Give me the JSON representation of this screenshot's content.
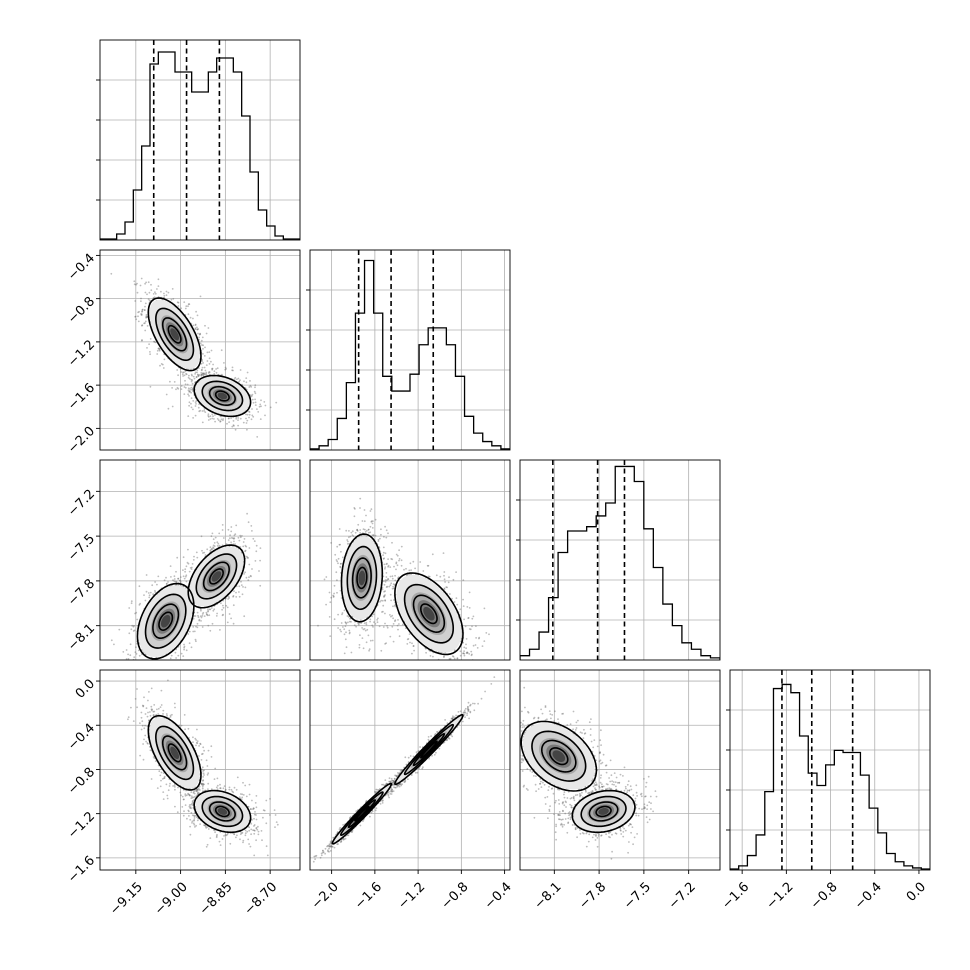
{
  "chart_data": {
    "type": "corner",
    "parameters": [
      {
        "id": "p0",
        "range": [
          -9.27,
          -8.6
        ],
        "ticks": [
          -9.15,
          -9.0,
          -8.85,
          -8.7
        ],
        "tick_labels": [
          "−9.15",
          "−9.00",
          "−8.85",
          "−8.70"
        ],
        "quantiles": [
          -9.09,
          -8.98,
          -8.87
        ],
        "hist_bins": [
          0.5,
          0.5,
          3,
          9,
          25,
          47,
          88,
          94,
          94,
          84,
          84,
          74,
          74,
          84,
          91,
          91,
          84,
          62,
          34,
          15,
          7,
          2,
          0.5,
          0.5
        ],
        "hist_max": 100
      },
      {
        "id": "p1",
        "range": [
          -2.2,
          -0.35
        ],
        "ticks": [
          -2.0,
          -1.6,
          -1.2,
          -0.8,
          -0.4
        ],
        "tick_labels": [
          "−2.0",
          "−1.6",
          "−1.2",
          "−0.8",
          "−0.4"
        ],
        "quantiles": [
          -1.75,
          -1.45,
          -1.06
        ],
        "hist_bins": [
          0.5,
          2,
          5,
          15,
          32,
          65,
          90,
          65,
          35,
          28,
          28,
          36,
          50,
          58,
          58,
          50,
          35,
          16,
          8,
          4,
          2,
          0.5
        ],
        "hist_max": 95
      },
      {
        "id": "p2",
        "range": [
          -8.33,
          -6.99
        ],
        "ticks": [
          -8.1,
          -7.8,
          -7.5,
          -7.2
        ],
        "tick_labels": [
          "−8.1",
          "−7.8",
          "−7.5",
          "−7.2"
        ],
        "quantiles": [
          -8.11,
          -7.81,
          -7.63
        ],
        "hist_bins": [
          2,
          5,
          13,
          29,
          50,
          60,
          60,
          62,
          67,
          73,
          90,
          90,
          83,
          61,
          43,
          26,
          16,
          8,
          5,
          2,
          1
        ],
        "hist_max": 93
      },
      {
        "id": "p3",
        "range": [
          -1.71,
          0.1
        ],
        "ticks": [
          -1.6,
          -1.2,
          -0.8,
          -0.4,
          0.0
        ],
        "tick_labels": [
          "−1.6",
          "−1.2",
          "−0.8",
          "−0.4",
          "0.0"
        ],
        "quantiles": [
          -1.24,
          -0.97,
          -0.6
        ],
        "hist_bins": [
          0.5,
          2,
          7,
          17,
          38,
          88,
          90,
          86,
          65,
          47,
          41,
          51,
          58,
          57,
          57,
          46,
          30,
          18,
          8,
          4,
          2,
          1,
          0.5
        ],
        "hist_max": 97
      }
    ],
    "y_axis_panels": [
      {
        "row": 1,
        "ticks": [
          -2.0,
          -1.6,
          -1.2,
          -0.8,
          -0.4
        ],
        "tick_labels": [
          "−2.0",
          "−1.6",
          "−1.2",
          "−0.8",
          "−0.4"
        ]
      },
      {
        "row": 2,
        "ticks": [
          -8.1,
          -7.8,
          -7.5,
          -7.2
        ],
        "tick_labels": [
          "−8.1",
          "−7.8",
          "−7.5",
          "−7.2"
        ]
      },
      {
        "row": 3,
        "ticks": [
          -1.6,
          -1.2,
          -0.8,
          -0.4,
          0.0
        ],
        "tick_labels": [
          "−1.6",
          "−1.2",
          "−0.8",
          "−0.4",
          "0.0"
        ]
      }
    ],
    "pair_panels": [
      {
        "x": 0,
        "y": 1,
        "modes": [
          {
            "cx": -9.02,
            "cy": -1.13,
            "sx": 0.042,
            "sy": 0.16,
            "rho": -0.6
          },
          {
            "cx": -8.86,
            "cy": -1.7,
            "sx": 0.045,
            "sy": 0.09,
            "rho": -0.3
          }
        ]
      },
      {
        "x": 0,
        "y": 2,
        "modes": [
          {
            "cx": -9.05,
            "cy": -8.07,
            "sx": 0.045,
            "sy": 0.12,
            "rho": 0.4
          },
          {
            "cx": -8.88,
            "cy": -7.77,
            "sx": 0.045,
            "sy": 0.1,
            "rho": 0.5
          }
        ]
      },
      {
        "x": 1,
        "y": 2,
        "modes": [
          {
            "cx": -1.72,
            "cy": -7.78,
            "sx": 0.09,
            "sy": 0.14,
            "rho": 0.1
          },
          {
            "cx": -1.1,
            "cy": -8.02,
            "sx": 0.15,
            "sy": 0.13,
            "rho": -0.5
          }
        ]
      },
      {
        "x": 0,
        "y": 3,
        "modes": [
          {
            "cx": -9.02,
            "cy": -0.65,
            "sx": 0.042,
            "sy": 0.16,
            "rho": -0.6
          },
          {
            "cx": -8.86,
            "cy": -1.18,
            "sx": 0.045,
            "sy": 0.09,
            "rho": -0.3
          }
        ]
      },
      {
        "x": 1,
        "y": 3,
        "modes": [
          {
            "cx": -1.72,
            "cy": -1.2,
            "sx": 0.13,
            "sy": 0.13,
            "rho": 0.98
          },
          {
            "cx": -1.1,
            "cy": -0.62,
            "sx": 0.15,
            "sy": 0.15,
            "rho": 0.98
          }
        ]
      },
      {
        "x": 2,
        "y": 3,
        "modes": [
          {
            "cx": -8.07,
            "cy": -0.68,
            "sx": 0.12,
            "sy": 0.15,
            "rho": -0.4
          },
          {
            "cx": -7.77,
            "cy": -1.18,
            "sx": 0.1,
            "sy": 0.09,
            "rho": 0.2
          }
        ]
      }
    ]
  }
}
